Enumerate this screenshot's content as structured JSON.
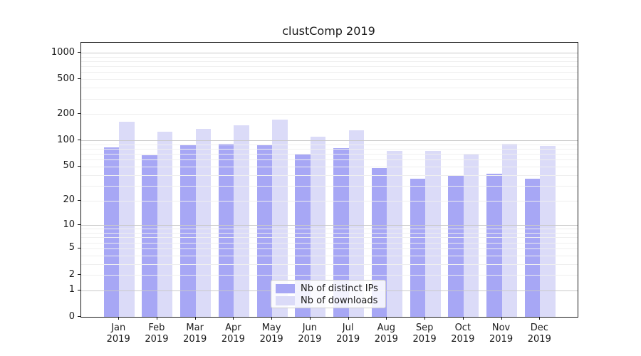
{
  "title": "clustComp 2019",
  "legend": {
    "items": [
      {
        "label": "Nb of distinct IPs",
        "color_key": "ips"
      },
      {
        "label": "Nb of downloads",
        "color_key": "downloads"
      }
    ]
  },
  "colors": {
    "ips": "#a7a7f5",
    "downloads": "#dbdbf8",
    "grid_major": "#c9c9c9",
    "grid_minor": "#efefef",
    "axis": "#1a1a1a",
    "legend_border": "#cccccc"
  },
  "chart_data": {
    "type": "bar",
    "title": "clustComp 2019",
    "categories": [
      "Jan 2019",
      "Feb 2019",
      "Mar 2019",
      "Apr 2019",
      "May 2019",
      "Jun 2019",
      "Jul 2019",
      "Aug 2019",
      "Sep 2019",
      "Oct 2019",
      "Nov 2019",
      "Dec 2019"
    ],
    "series": [
      {
        "name": "Nb of distinct IPs",
        "color_key": "ips",
        "values": [
          83,
          67,
          89,
          92,
          88,
          70,
          81,
          48,
          36,
          40,
          41,
          36
        ]
      },
      {
        "name": "Nb of downloads",
        "color_key": "downloads",
        "values": [
          165,
          127,
          136,
          150,
          173,
          110,
          130,
          76,
          76,
          69,
          92,
          87
        ]
      }
    ],
    "yscale": "log10(value+1)",
    "y_ticks": [
      0,
      1,
      2,
      5,
      10,
      20,
      50,
      100,
      200,
      500,
      1000
    ],
    "y_minor_gridlines": [
      2,
      3,
      4,
      5,
      6,
      7,
      8,
      9,
      20,
      30,
      40,
      50,
      60,
      70,
      80,
      90,
      200,
      300,
      400,
      500,
      600,
      700,
      800,
      900
    ],
    "y_major_gridlines": [
      1,
      10,
      100,
      1000
    ],
    "ylim": [
      0,
      1300
    ],
    "grid": true,
    "grid_above_bars": true,
    "legend_position": "lower center"
  }
}
